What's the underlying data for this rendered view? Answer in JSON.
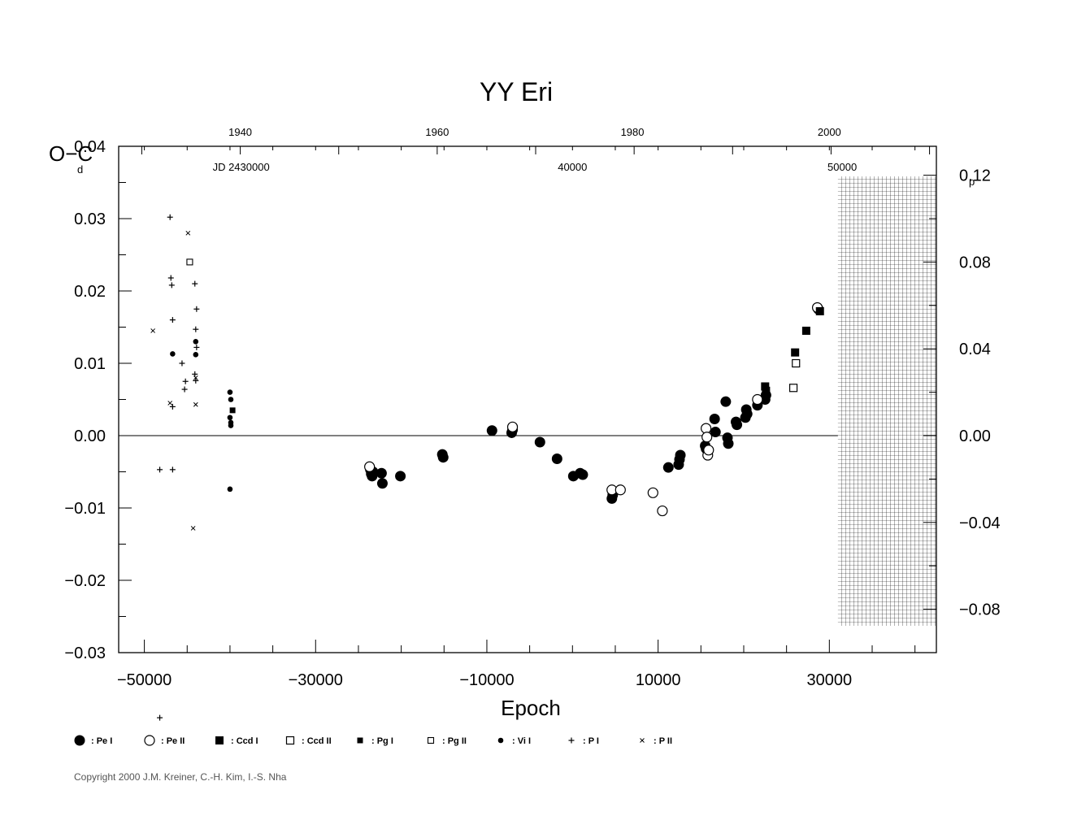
{
  "chart_data": {
    "type": "scatter",
    "title": "YY  Eri",
    "xlabel": "Epoch",
    "ylabel": "O−C",
    "y_unit": "d",
    "y2_unit": "p",
    "xlim": [
      -53000,
      42500
    ],
    "ylim": [
      -0.03,
      0.04
    ],
    "x_ticks": [
      -50000,
      -30000,
      -10000,
      10000,
      30000
    ],
    "x_tick_labels": [
      "−50000",
      "−30000",
      "−10000",
      "10000",
      "30000"
    ],
    "y_ticks": [
      -0.03,
      -0.02,
      -0.01,
      0.0,
      0.01,
      0.02,
      0.03,
      0.04
    ],
    "y_tick_labels": [
      "−0.03",
      "−0.02",
      "−0.01",
      "0.00",
      "0.01",
      "0.02",
      "0.03",
      "0.04"
    ],
    "y2_ticks": [
      -0.08,
      -0.04,
      0.0,
      0.04,
      0.08,
      0.12
    ],
    "y2_tick_labels": [
      "−0.08",
      "−0.04",
      "0.00",
      "0.04",
      "0.08",
      "0.12"
    ],
    "top_years": [
      "1940",
      "1960",
      "1980",
      "2000"
    ],
    "top_year_epochs": [
      -38800,
      -15800,
      7000,
      30000
    ],
    "top_jd": [
      {
        "label": "JD  2430000",
        "epoch": -38700
      },
      {
        "label": "40000",
        "epoch": 0
      },
      {
        "label": "50000",
        "epoch": 31500
      }
    ],
    "future_region_start": 31000,
    "series": [
      {
        "name": "Pe I",
        "symbol": "filled-circle",
        "points": [
          [
            -23600,
            -0.0047
          ],
          [
            -23500,
            -0.0053
          ],
          [
            -23400,
            -0.0056
          ],
          [
            -23300,
            -0.005
          ],
          [
            -22300,
            -0.0052
          ],
          [
            -22200,
            -0.0066
          ],
          [
            -20100,
            -0.0056
          ],
          [
            -15200,
            -0.0026
          ],
          [
            -15100,
            -0.003
          ],
          [
            -9400,
            0.0007
          ],
          [
            -7100,
            0.0004
          ],
          [
            -7000,
            0.0008
          ],
          [
            -3800,
            -0.0009
          ],
          [
            -1800,
            -0.0032
          ],
          [
            100,
            -0.0056
          ],
          [
            900,
            -0.0052
          ],
          [
            1200,
            -0.0054
          ],
          [
            4600,
            -0.0087
          ],
          [
            4700,
            -0.0082
          ],
          [
            11200,
            -0.0044
          ],
          [
            12400,
            -0.004
          ],
          [
            12500,
            -0.0033
          ],
          [
            12600,
            -0.0027
          ],
          [
            15500,
            -0.0014
          ],
          [
            15600,
            -0.0018
          ],
          [
            16600,
            0.0023
          ],
          [
            16700,
            0.0005
          ],
          [
            17900,
            0.0047
          ],
          [
            18100,
            -0.0003
          ],
          [
            18200,
            -0.0011
          ],
          [
            19100,
            0.0019
          ],
          [
            19200,
            0.0015
          ],
          [
            20200,
            0.0025
          ],
          [
            20300,
            0.0036
          ],
          [
            20400,
            0.003
          ],
          [
            21600,
            0.0042
          ],
          [
            22500,
            0.005
          ],
          [
            22600,
            0.0056
          ],
          [
            28700,
            0.0175
          ]
        ]
      },
      {
        "name": "Pe II",
        "symbol": "open-circle",
        "points": [
          [
            -23700,
            -0.0043
          ],
          [
            -7000,
            0.0012
          ],
          [
            4600,
            -0.0075
          ],
          [
            5600,
            -0.0075
          ],
          [
            9400,
            -0.0079
          ],
          [
            10500,
            -0.0104
          ],
          [
            15600,
            0.001
          ],
          [
            15700,
            -0.0002
          ],
          [
            15800,
            -0.0027
          ],
          [
            15900,
            -0.002
          ],
          [
            21600,
            0.005
          ],
          [
            28600,
            0.0177
          ]
        ]
      },
      {
        "name": "Ccd I",
        "symbol": "filled-square",
        "points": [
          [
            22500,
            0.0068
          ],
          [
            22600,
            0.0062
          ],
          [
            26000,
            0.0115
          ],
          [
            27300,
            0.0145
          ],
          [
            28900,
            0.0172
          ]
        ]
      },
      {
        "name": "Ccd II",
        "symbol": "open-square",
        "points": [
          [
            25800,
            0.0066
          ],
          [
            26100,
            0.01
          ]
        ]
      },
      {
        "name": "Pg I",
        "symbol": "small-filled-square",
        "points": [
          [
            -39700,
            0.0035
          ]
        ]
      },
      {
        "name": "Pg II",
        "symbol": "small-open-square",
        "points": [
          [
            -44700,
            0.024
          ]
        ]
      },
      {
        "name": "Vi I",
        "symbol": "small-filled-circle",
        "points": [
          [
            -46700,
            0.0113
          ],
          [
            -44000,
            0.013
          ],
          [
            -44000,
            0.0112
          ],
          [
            -40000,
            0.006
          ],
          [
            -39900,
            0.005
          ],
          [
            -40000,
            0.0025
          ],
          [
            -39900,
            0.0018
          ],
          [
            -39900,
            0.0014
          ],
          [
            -40000,
            -0.0074
          ]
        ]
      },
      {
        "name": "P I",
        "symbol": "plus",
        "points": [
          [
            -47000,
            0.0302
          ],
          [
            -46900,
            0.0218
          ],
          [
            -46800,
            0.0208
          ],
          [
            -46700,
            0.016
          ],
          [
            -45600,
            0.01
          ],
          [
            -45200,
            0.0075
          ],
          [
            -45300,
            0.0064
          ],
          [
            -46700,
            0.004
          ],
          [
            -48200,
            -0.0047
          ],
          [
            -46700,
            -0.0047
          ],
          [
            -44100,
            0.021
          ],
          [
            -43900,
            0.0175
          ],
          [
            -44000,
            0.0147
          ],
          [
            -44100,
            0.0085
          ],
          [
            -44000,
            0.0076
          ],
          [
            -43900,
            0.0122
          ]
        ]
      },
      {
        "name": "P II",
        "symbol": "x",
        "points": [
          [
            -47000,
            0.0045
          ],
          [
            -44900,
            0.028
          ],
          [
            -44300,
            -0.0128
          ],
          [
            -44000,
            0.0043
          ],
          [
            -44000,
            0.008
          ],
          [
            -49000,
            0.0145
          ]
        ]
      }
    ],
    "extra_marks": [
      {
        "symbol": "plus",
        "x": -48200,
        "y": -0.039
      }
    ],
    "legend": [
      {
        "symbol": "filled-circle",
        "label": ": Pe  I"
      },
      {
        "symbol": "open-circle",
        "label": ": Pe  II"
      },
      {
        "symbol": "filled-square",
        "label": ": Ccd  I"
      },
      {
        "symbol": "open-square",
        "label": ": Ccd  II"
      },
      {
        "symbol": "small-filled-square",
        "label": ": Pg  I"
      },
      {
        "symbol": "small-open-square",
        "label": ": Pg  II"
      },
      {
        "symbol": "small-filled-circle",
        "label": ": Vi  I"
      },
      {
        "symbol": "plus",
        "label": ": P  I"
      },
      {
        "symbol": "x",
        "label": ": P  II"
      }
    ],
    "legend_position": "bottom",
    "grid": false,
    "copyright": "Copyright 2000 J.M. Kreiner, C.-H. Kim, I.-S. Nha"
  }
}
